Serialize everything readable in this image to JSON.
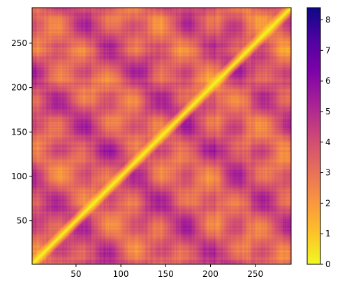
{
  "chart_data": {
    "type": "heatmap",
    "title": "",
    "xlabel": "",
    "ylabel": "",
    "xlim": [
      1,
      290
    ],
    "ylim": [
      1,
      290
    ],
    "x_ticks": [
      50,
      100,
      150,
      200,
      250
    ],
    "y_ticks": [
      50,
      100,
      150,
      200,
      250
    ],
    "matrix_size": 290,
    "colormap": "plasma_r",
    "colorbar": {
      "min": 0,
      "max": 8.4,
      "ticks": [
        0,
        1,
        2,
        3,
        4,
        5,
        6,
        7,
        8
      ]
    },
    "diagonal_value": 0,
    "grid": false,
    "legend": "none"
  }
}
